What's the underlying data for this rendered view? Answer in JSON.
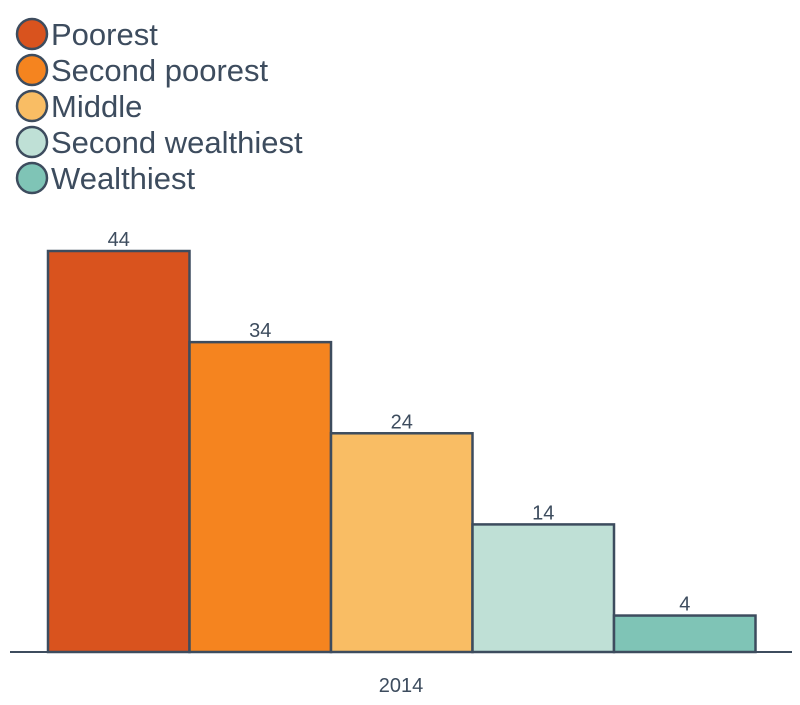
{
  "chart_data": {
    "type": "bar",
    "categories": [
      "2014"
    ],
    "series": [
      {
        "name": "Poorest",
        "values": [
          44
        ],
        "color": "#d9531e"
      },
      {
        "name": "Second poorest",
        "values": [
          34
        ],
        "color": "#f5841f"
      },
      {
        "name": "Middle",
        "values": [
          24
        ],
        "color": "#f9bd64"
      },
      {
        "name": "Second wealthiest",
        "values": [
          14
        ],
        "color": "#bfe0d6"
      },
      {
        "name": "Wealthiest",
        "values": [
          4
        ],
        "color": "#7fc4b6"
      }
    ],
    "title": "",
    "xlabel": "",
    "ylabel": "",
    "ylim": [
      0,
      44
    ],
    "grid": false,
    "legend_position": "top-left",
    "outline_color": "#3d4c5e",
    "text_color": "#3d4c5e"
  }
}
